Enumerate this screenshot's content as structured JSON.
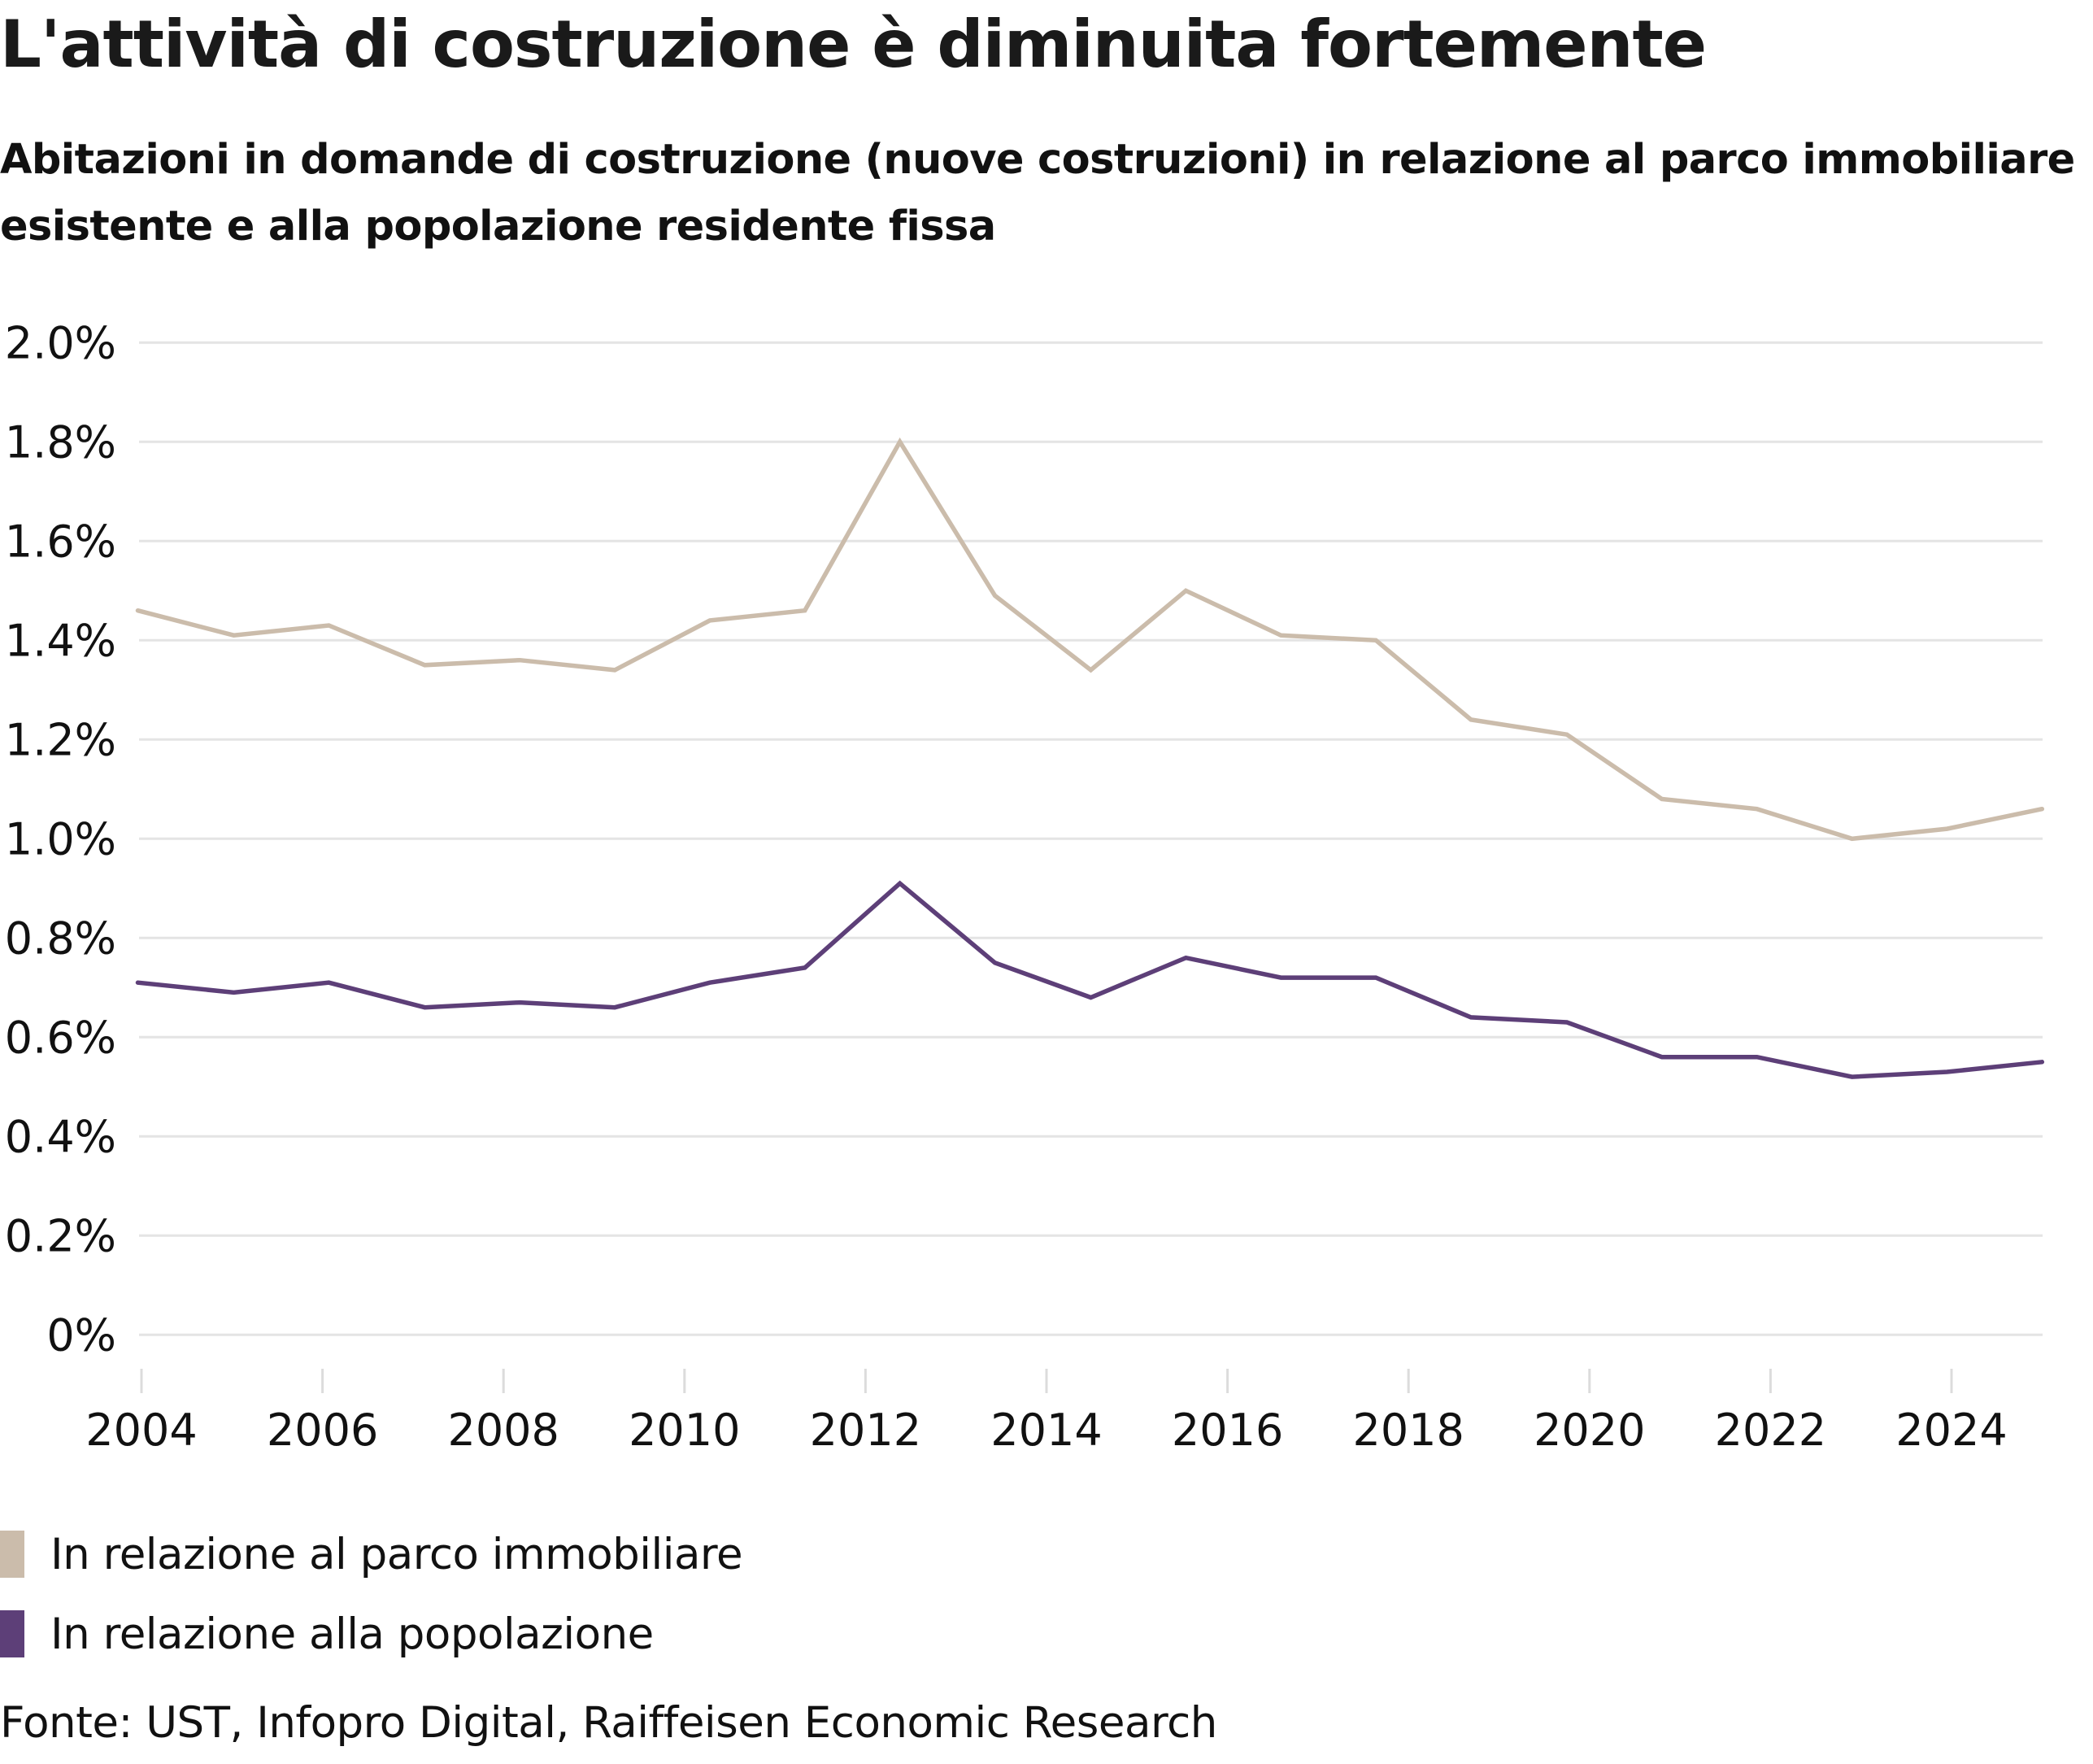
{
  "header": {
    "title": "L'attività di costruzione è diminuita fortemente",
    "subtitle_line1": "Abitazioni in domande di costruzione (nuove costruzioni) in relazione al parco immobiliare",
    "subtitle_line2": "esistente e alla popolazione residente fissa"
  },
  "chart_data": {
    "type": "line",
    "title": "L'attività di costruzione è diminuita fortemente",
    "subtitle": "Abitazioni in domande di costruzione (nuove costruzioni) in relazione al parco immobiliare esistente e alla popolazione residente fissa",
    "xlabel": "",
    "ylabel": "",
    "x": [
      2003.96,
      2005.02,
      2006.07,
      2007.13,
      2008.18,
      2009.23,
      2010.28,
      2011.33,
      2012.38,
      2013.43,
      2014.49,
      2015.54,
      2016.59,
      2017.64,
      2018.69,
      2019.75,
      2020.8,
      2021.85,
      2022.9,
      2023.95,
      2025.0
    ],
    "xlim": [
      2004,
      2025
    ],
    "ylim": [
      0,
      2.0
    ],
    "y_unit": "%",
    "grid": true,
    "y_ticks": [
      0,
      0.2,
      0.4,
      0.6,
      0.8,
      1.0,
      1.2,
      1.4,
      1.6,
      1.8,
      2.0
    ],
    "y_tick_labels": [
      "0%",
      "0.2%",
      "0.4%",
      "0.6%",
      "0.8%",
      "1.0%",
      "1.2%",
      "1.4%",
      "1.6%",
      "1.8%",
      "2.0%"
    ],
    "x_ticks": [
      2004,
      2006,
      2008,
      2010,
      2012,
      2014,
      2016,
      2018,
      2020,
      2022,
      2024
    ],
    "x_tick_labels": [
      "2004",
      "2006",
      "2008",
      "2010",
      "2012",
      "2014",
      "2016",
      "2018",
      "2020",
      "2022",
      "2024"
    ],
    "legend_position": "bottom-left",
    "series": [
      {
        "name": "In relazione al parco immobiliare",
        "color": "#cbbcab",
        "values": [
          1.46,
          1.41,
          1.43,
          1.35,
          1.36,
          1.34,
          1.44,
          1.46,
          1.8,
          1.49,
          1.34,
          1.5,
          1.41,
          1.4,
          1.24,
          1.21,
          1.08,
          1.06,
          1.0,
          1.02,
          1.06
        ]
      },
      {
        "name": "In relazione alla popolazione",
        "color": "#5d3f78",
        "values": [
          0.71,
          0.69,
          0.71,
          0.66,
          0.67,
          0.66,
          0.71,
          0.74,
          0.91,
          0.75,
          0.68,
          0.76,
          0.72,
          0.72,
          0.64,
          0.63,
          0.56,
          0.56,
          0.52,
          0.53,
          0.55
        ]
      }
    ]
  },
  "legend": {
    "items": [
      {
        "label": "In relazione al parco immobiliare",
        "color": "#cbbcab"
      },
      {
        "label": "In relazione alla popolazione",
        "color": "#5d3f78"
      }
    ]
  },
  "footer": {
    "source": "Fonte: UST, Infopro Digital, Raiffeisen Economic Research"
  }
}
